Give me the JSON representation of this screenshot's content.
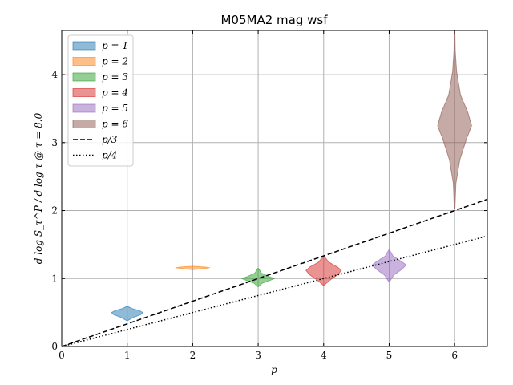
{
  "chart_data": {
    "type": "violin",
    "title": "M05MA2 mag wsf",
    "xlabel": "p",
    "ylabel": "d log S_τ^P / d log τ @ τ = 8.0",
    "xlim": [
      0,
      6.5
    ],
    "ylim": [
      0,
      4.65
    ],
    "x_ticks": [
      0,
      1,
      2,
      3,
      4,
      5,
      6
    ],
    "y_ticks": [
      0,
      1,
      2,
      3,
      4
    ],
    "grid": true,
    "legend_position": "top-left",
    "series": [
      {
        "name": "p = 1",
        "x": 1,
        "color": "#1f77b4",
        "profile": [
          [
            0.38,
            0.005
          ],
          [
            0.43,
            0.1
          ],
          [
            0.47,
            0.21
          ],
          [
            0.5,
            0.24
          ],
          [
            0.53,
            0.18
          ],
          [
            0.56,
            0.07
          ],
          [
            0.59,
            0.005
          ]
        ]
      },
      {
        "name": "p = 2",
        "x": 2,
        "color": "#ff7f0e",
        "profile": [
          [
            1.13,
            0.005
          ],
          [
            1.15,
            0.2
          ],
          [
            1.16,
            0.26
          ],
          [
            1.17,
            0.18
          ],
          [
            1.18,
            0.005
          ]
        ]
      },
      {
        "name": "p = 3",
        "x": 3,
        "color": "#2ca02c",
        "profile": [
          [
            0.88,
            0.005
          ],
          [
            0.93,
            0.06
          ],
          [
            0.98,
            0.2
          ],
          [
            1.0,
            0.25
          ],
          [
            1.03,
            0.16
          ],
          [
            1.08,
            0.05
          ],
          [
            1.15,
            0.005
          ]
        ]
      },
      {
        "name": "p = 4",
        "x": 4,
        "color": "#d62728",
        "profile": [
          [
            0.9,
            0.005
          ],
          [
            0.98,
            0.1
          ],
          [
            1.06,
            0.22
          ],
          [
            1.12,
            0.27
          ],
          [
            1.17,
            0.21
          ],
          [
            1.24,
            0.08
          ],
          [
            1.33,
            0.005
          ]
        ]
      },
      {
        "name": "p = 5",
        "x": 5,
        "color": "#9467bd",
        "profile": [
          [
            0.95,
            0.005
          ],
          [
            1.05,
            0.07
          ],
          [
            1.14,
            0.2
          ],
          [
            1.2,
            0.26
          ],
          [
            1.25,
            0.19
          ],
          [
            1.33,
            0.06
          ],
          [
            1.42,
            0.005
          ]
        ]
      },
      {
        "name": "p = 6",
        "x": 6,
        "color": "#8c564b",
        "profile": [
          [
            2.03,
            0.005
          ],
          [
            2.4,
            0.02
          ],
          [
            2.75,
            0.08
          ],
          [
            3.05,
            0.18
          ],
          [
            3.25,
            0.26
          ],
          [
            3.45,
            0.2
          ],
          [
            3.7,
            0.09
          ],
          [
            4.05,
            0.03
          ],
          [
            4.35,
            0.01
          ],
          [
            4.6,
            0.005
          ]
        ]
      }
    ],
    "reference_lines": [
      {
        "name": "p/3",
        "slope": 0.3333,
        "style": "dashed"
      },
      {
        "name": "p/4",
        "slope": 0.25,
        "style": "dotted"
      }
    ]
  }
}
